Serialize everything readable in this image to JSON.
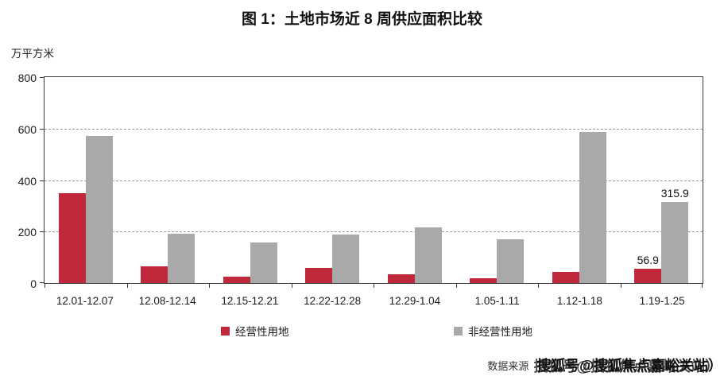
{
  "chart_data": {
    "type": "bar",
    "title": "图 1：土地市场近 8 周供应面积比较",
    "ylabel": "万平方米",
    "xlabel": "",
    "ylim": [
      0,
      800
    ],
    "y_ticks": [
      0,
      200,
      400,
      600,
      800
    ],
    "grid": "horizontal dashed at 200/400/600",
    "legend_position": "bottom",
    "categories": [
      "12.01-12.07",
      "12.08-12.14",
      "12.15-12.21",
      "12.22-12.28",
      "12.29-1.04",
      "1.05-1.11",
      "1.12-1.18",
      "1.19-1.25"
    ],
    "series": [
      {
        "name": "经营性用地",
        "color": "#c0283c",
        "values": [
          348,
          65,
          24,
          60,
          35,
          20,
          44,
          56.9
        ],
        "point_labels": [
          null,
          null,
          null,
          null,
          null,
          null,
          null,
          "56.9"
        ]
      },
      {
        "name": "非经营性用地",
        "color": "#a9a9a9",
        "values": [
          570,
          193,
          157,
          190,
          215,
          170,
          588,
          315.9
        ],
        "point_labels": [
          null,
          null,
          null,
          null,
          null,
          null,
          null,
          "315.9"
        ]
      }
    ]
  },
  "footer": {
    "source_label": "数据来源",
    "watermark": "搜狐号@搜狐焦点嘉峪关站）"
  }
}
